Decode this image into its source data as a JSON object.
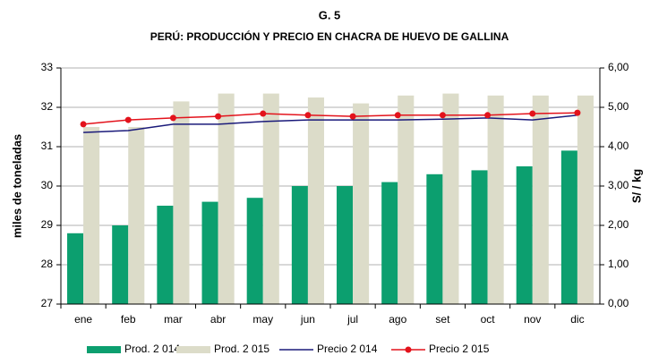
{
  "chart_data": {
    "type": "bar-line",
    "title": "G. 5",
    "subtitle": "PERÚ: PRODUCCIÓN Y PRECIO EN CHACRA DE HUEVO DE GALLINA",
    "ylabel": "miles de toneladas",
    "y2label": "S/ / kg",
    "categories": [
      "ene",
      "feb",
      "mar",
      "abr",
      "may",
      "jun",
      "jul",
      "ago",
      "set",
      "oct",
      "nov",
      "dic"
    ],
    "series": [
      {
        "name": "Prod. 2 014",
        "type": "bar",
        "color": "#0c9f6f",
        "values": [
          28.8,
          29.0,
          29.5,
          29.6,
          29.7,
          30.0,
          30.0,
          30.1,
          30.3,
          30.4,
          30.5,
          30.9
        ]
      },
      {
        "name": "Prod. 2 015",
        "type": "bar",
        "color": "#dcdcc9",
        "values": [
          31.5,
          31.5,
          32.15,
          32.35,
          32.35,
          32.25,
          32.1,
          32.3,
          32.35,
          32.3,
          32.3,
          32.3
        ]
      },
      {
        "name": "Precio 2 014",
        "type": "line",
        "axis": "y2",
        "color": "#1a1a7a",
        "values": [
          4.36,
          4.41,
          4.57,
          4.57,
          4.64,
          4.68,
          4.68,
          4.68,
          4.7,
          4.73,
          4.68,
          4.8
        ]
      },
      {
        "name": "Precio 2 015",
        "type": "line",
        "axis": "y2",
        "color": "#e3121b",
        "marker": true,
        "values": [
          4.57,
          4.68,
          4.73,
          4.77,
          4.84,
          4.8,
          4.77,
          4.8,
          4.8,
          4.8,
          4.84,
          4.86
        ]
      }
    ],
    "ylim": [
      27,
      33
    ],
    "yticks": [
      27,
      28,
      29,
      30,
      31,
      32,
      33
    ],
    "y2lim": [
      0,
      6
    ],
    "y2ticks": [
      {
        "value": 0,
        "label": "0,00"
      },
      {
        "value": 1,
        "label": "1,00"
      },
      {
        "value": 2,
        "label": "2,00"
      },
      {
        "value": 3,
        "label": "3,00"
      },
      {
        "value": 4,
        "label": "4,00"
      },
      {
        "value": 5,
        "label": "5,00"
      },
      {
        "value": 6,
        "label": "6,00"
      }
    ],
    "grid": true,
    "legend": "bottom"
  }
}
